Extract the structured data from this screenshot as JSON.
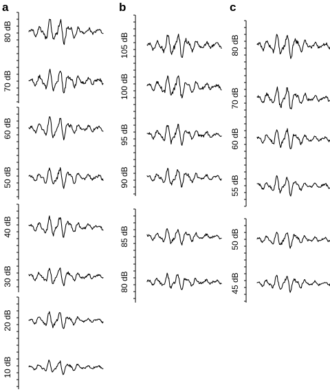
{
  "chart_data": [
    {
      "type": "line",
      "panel": "a",
      "traces": [
        {
          "label": "80 dB",
          "amplitude": 0.75
        },
        {
          "label": "70 dB",
          "amplitude": 0.72
        },
        {
          "label": "60 dB",
          "amplitude": 0.68
        },
        {
          "label": "50 dB",
          "amplitude": 0.66
        },
        {
          "label": "40 dB",
          "amplitude": 0.62
        },
        {
          "label": "30 dB",
          "amplitude": 0.56
        },
        {
          "label": "20 dB",
          "amplitude": 0.5
        },
        {
          "label": "10 dB",
          "amplitude": 0.42
        }
      ]
    },
    {
      "type": "line",
      "panel": "b",
      "traces": [
        {
          "label": "105 dB",
          "amplitude": 0.72
        },
        {
          "label": "100 dB",
          "amplitude": 0.68
        },
        {
          "label": "95 dB",
          "amplitude": 0.64
        },
        {
          "label": "90 dB",
          "amplitude": 0.58
        },
        {
          "label": "85 dB",
          "amplitude": 0.54
        },
        {
          "label": "80 dB",
          "amplitude": 0.5
        }
      ]
    },
    {
      "type": "line",
      "panel": "c",
      "traces": [
        {
          "label": "80 dB",
          "amplitude": 0.72
        },
        {
          "label": "70 dB",
          "amplitude": 0.68
        },
        {
          "label": "60 dB",
          "amplitude": 0.6
        },
        {
          "label": "55 dB",
          "amplitude": 0.56
        },
        {
          "label": "50 dB",
          "amplitude": 0.5
        },
        {
          "label": "45 dB",
          "amplitude": 0.48
        }
      ]
    }
  ]
}
